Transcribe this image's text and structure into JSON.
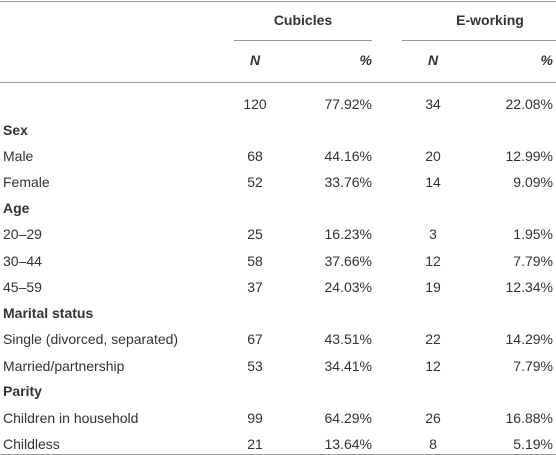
{
  "table": {
    "groups": [
      "Cubicles",
      "E-working"
    ],
    "subheaders": [
      "N",
      "%",
      "N",
      "%"
    ],
    "total": [
      120,
      "77.92%",
      34,
      "22.08%"
    ],
    "sections": [
      {
        "title": "Sex",
        "rows": [
          [
            "Male",
            68,
            "44.16%",
            20,
            "12.99%"
          ],
          [
            "Female",
            52,
            "33.76%",
            14,
            "9.09%"
          ]
        ]
      },
      {
        "title": "Age",
        "rows": [
          [
            "20–29",
            25,
            "16.23%",
            3,
            "1.95%"
          ],
          [
            "30–44",
            58,
            "37.66%",
            12,
            "7.79%"
          ],
          [
            "45–59",
            37,
            "24.03%",
            19,
            "12.34%"
          ]
        ]
      },
      {
        "title": "Marital status",
        "rows": [
          [
            "Single (divorced, separated)",
            67,
            "43.51%",
            22,
            "14.29%"
          ],
          [
            "Married/partnership",
            53,
            "34.41%",
            12,
            "7.79%"
          ]
        ]
      },
      {
        "title": "Parity",
        "rows": [
          [
            "Children in household",
            99,
            "64.29%",
            26,
            "16.88%"
          ],
          [
            "Childless",
            21,
            "13.64%",
            8,
            "5.19%"
          ]
        ]
      }
    ]
  }
}
